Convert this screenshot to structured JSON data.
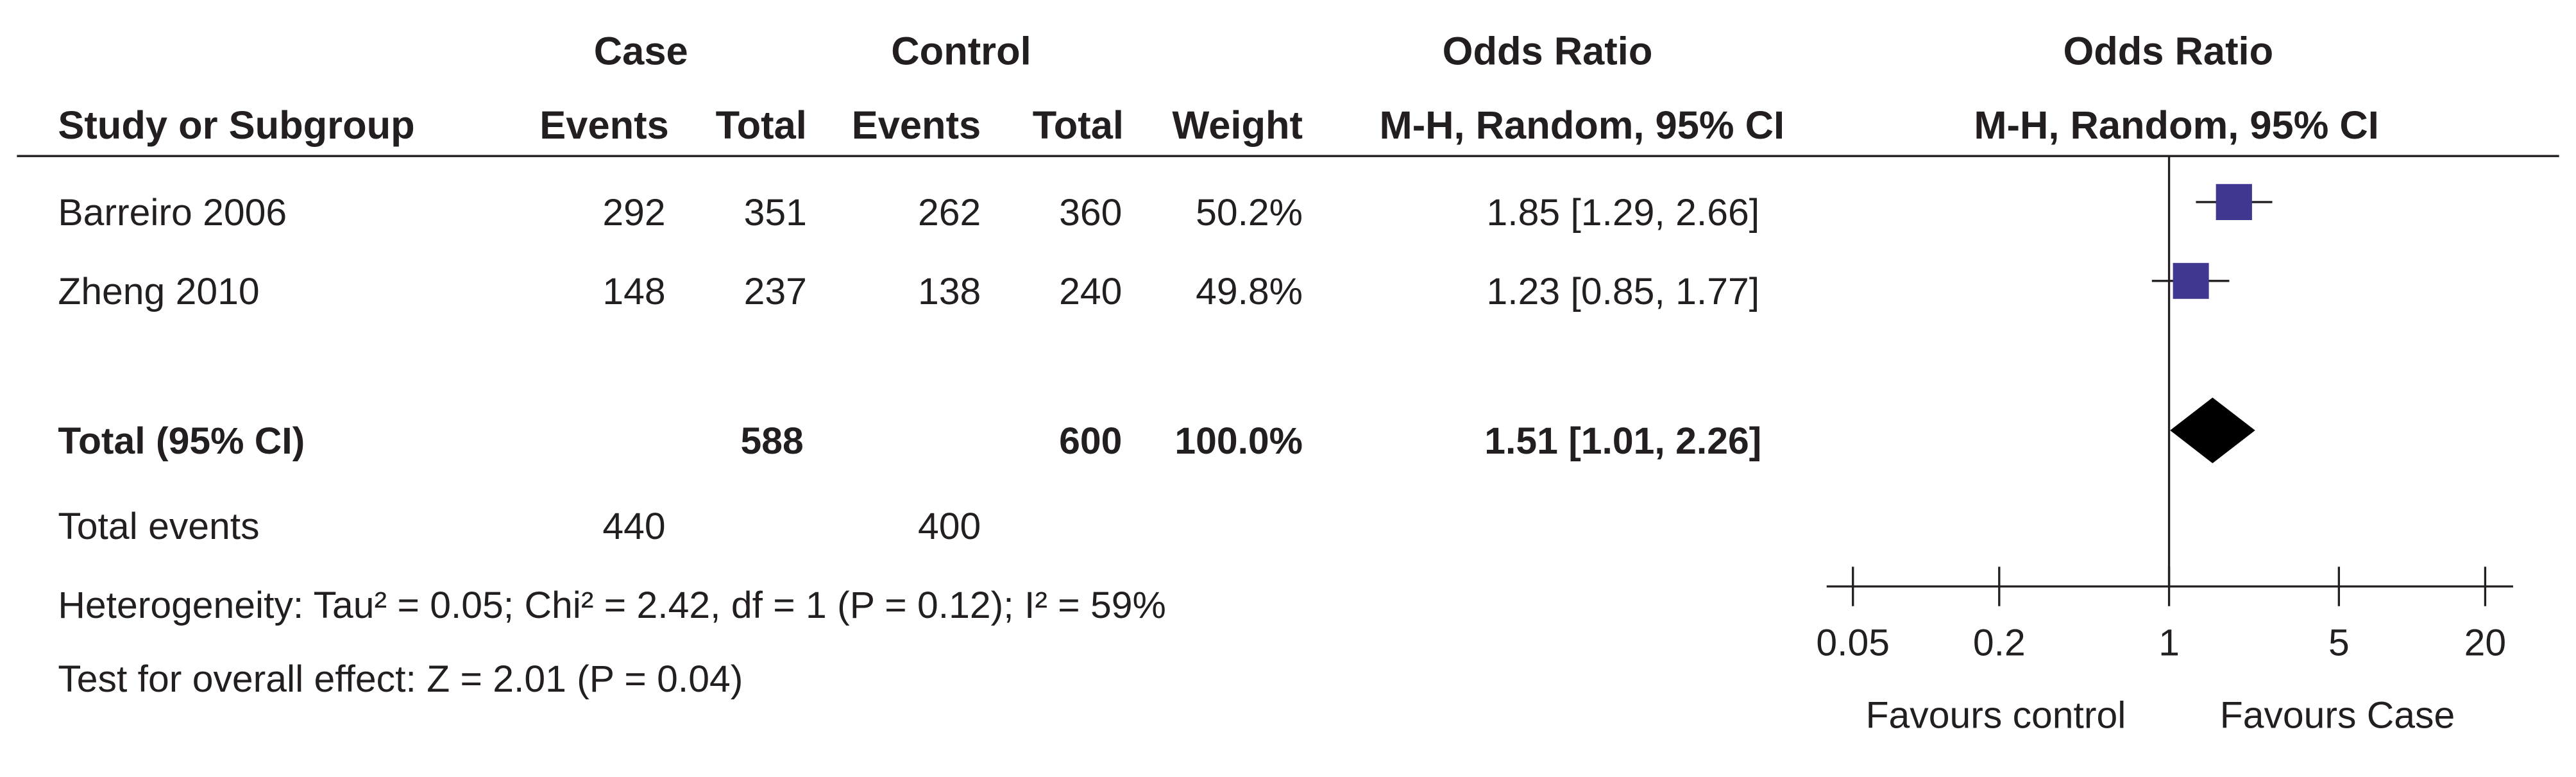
{
  "chart_data": {
    "type": "forest",
    "column_groups": [
      "Case",
      "Control",
      "Odds Ratio",
      "Odds Ratio"
    ],
    "columns": [
      "Study or Subgroup",
      "Events",
      "Total",
      "Events",
      "Total",
      "Weight",
      "M-H, Random, 95% CI",
      "M-H, Random, 95% CI"
    ],
    "studies": [
      {
        "name": "Barreiro 2006",
        "case_events": 292,
        "case_total": 351,
        "control_events": 262,
        "control_total": 360,
        "weight": 50.2,
        "weight_label": "50.2%",
        "or": 1.85,
        "ci": [
          1.29,
          2.66
        ],
        "or_label": "1.85 [1.29, 2.66]"
      },
      {
        "name": "Zheng 2010",
        "case_events": 148,
        "case_total": 237,
        "control_events": 138,
        "control_total": 240,
        "weight": 49.8,
        "weight_label": "49.8%",
        "or": 1.23,
        "ci": [
          0.85,
          1.77
        ],
        "or_label": "1.23 [0.85, 1.77]"
      }
    ],
    "total": {
      "name": "Total (95% CI)",
      "case_total": 588,
      "control_total": 600,
      "weight": 100.0,
      "weight_label": "100.0%",
      "or": 1.51,
      "ci": [
        1.01,
        2.26
      ],
      "or_label": "1.51 [1.01, 2.26]"
    },
    "total_events": {
      "name": "Total events",
      "case": 440,
      "control": 400
    },
    "heterogeneity": "Heterogeneity: Tau² = 0.05; Chi² = 2.42, df = 1 (P = 0.12); I² = 59%",
    "overall_effect": "Test for overall effect: Z = 2.01 (P = 0.04)",
    "xscale": "log",
    "xlim": [
      0.05,
      20
    ],
    "xticks": [
      0.05,
      0.2,
      1,
      5,
      20
    ],
    "reference_line": 1,
    "x_labels": [
      "Favours control",
      "Favours Case"
    ],
    "study_color": "#3f3790",
    "total_color": "#000000"
  }
}
